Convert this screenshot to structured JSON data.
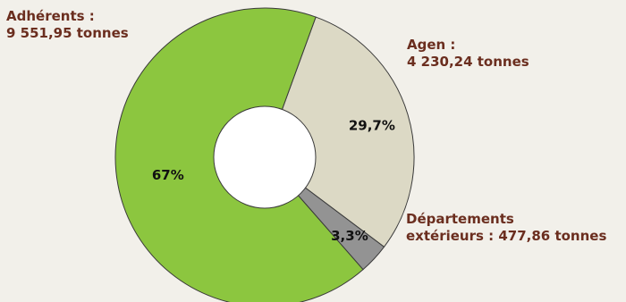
{
  "chart_data": {
    "type": "pie",
    "donut": true,
    "slices": [
      {
        "name": "Agen :",
        "detail": "4 230,24 tonnes",
        "tonnes": 4230.24,
        "percent": 29.7,
        "percent_label": "29,7%",
        "color": "#dcd9c5"
      },
      {
        "name": "Départements",
        "detail": "extérieurs : 477,86 tonnes",
        "tonnes": 477.86,
        "percent": 3.3,
        "percent_label": "3,3%",
        "color": "#939393"
      },
      {
        "name": "Adhérents :",
        "detail": "9 551,95 tonnes",
        "tonnes": 9551.95,
        "percent": 67.0,
        "percent_label": "67%",
        "color": "#8cc63f"
      }
    ]
  }
}
